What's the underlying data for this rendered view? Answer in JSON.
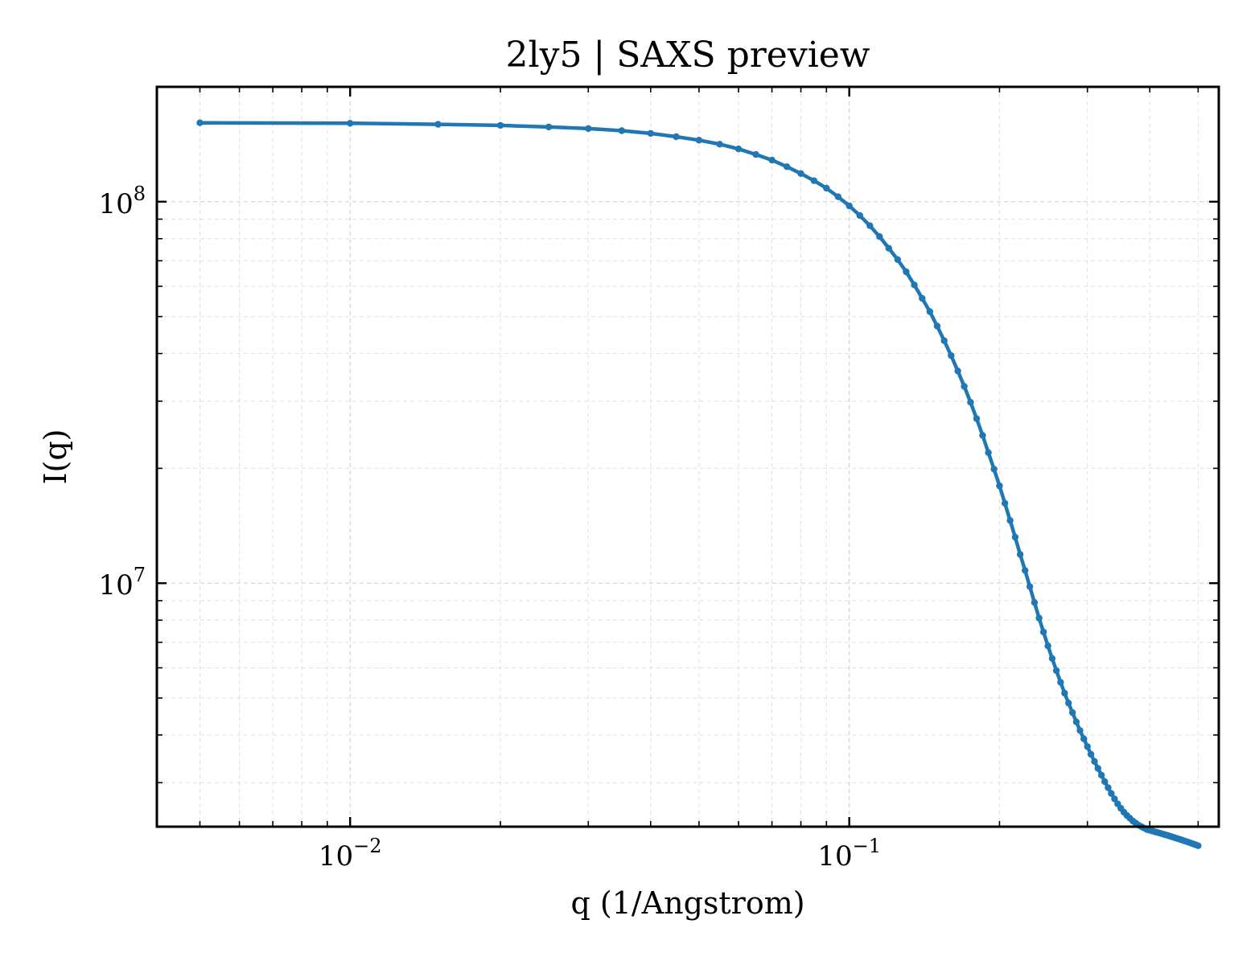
{
  "chart_data": {
    "type": "line",
    "title": "2ly5 | SAXS preview",
    "xlabel": "q (1/Angstrom)",
    "ylabel": "I(q)",
    "x_scale": "log",
    "y_scale": "log",
    "xlim": [
      0.0041,
      0.55
    ],
    "ylim": [
      2300000,
      200000000
    ],
    "grid": true,
    "legend": "none",
    "x_ticks": [
      {
        "value": 0.01,
        "base": "10",
        "exp": "−2"
      },
      {
        "value": 0.1,
        "base": "10",
        "exp": "−1"
      }
    ],
    "y_ticks": [
      {
        "value": 10000000,
        "base": "10",
        "exp": "7"
      },
      {
        "value": 100000000,
        "base": "10",
        "exp": "8"
      }
    ],
    "series": [
      {
        "color": "#1f77b4",
        "points": [
          [
            0.005,
            161000000
          ],
          [
            0.01,
            160500000
          ],
          [
            0.015,
            159500000
          ],
          [
            0.02,
            158500000
          ],
          [
            0.025,
            157000000
          ],
          [
            0.03,
            155500000
          ],
          [
            0.035,
            153500000
          ],
          [
            0.04,
            151000000
          ],
          [
            0.045,
            148000000
          ],
          [
            0.05,
            145000000
          ],
          [
            0.055,
            141500000
          ],
          [
            0.06,
            137500000
          ],
          [
            0.065,
            133000000
          ],
          [
            0.07,
            128500000
          ],
          [
            0.075,
            123500000
          ],
          [
            0.08,
            118500000
          ],
          [
            0.085,
            113500000
          ],
          [
            0.09,
            108500000
          ],
          [
            0.095,
            103000000
          ],
          [
            0.1,
            97500000
          ],
          [
            0.105,
            92000000
          ],
          [
            0.11,
            86500000
          ],
          [
            0.115,
            81000000
          ],
          [
            0.12,
            75500000
          ],
          [
            0.125,
            70500000
          ],
          [
            0.13,
            65500000
          ],
          [
            0.135,
            60500000
          ],
          [
            0.14,
            55800000
          ],
          [
            0.145,
            51500000
          ],
          [
            0.15,
            47200000
          ],
          [
            0.155,
            43200000
          ],
          [
            0.16,
            39500000
          ],
          [
            0.165,
            36000000
          ],
          [
            0.17,
            32800000
          ],
          [
            0.175,
            29800000
          ],
          [
            0.18,
            27000000
          ],
          [
            0.185,
            24400000
          ],
          [
            0.19,
            22000000
          ],
          [
            0.195,
            19900000
          ],
          [
            0.2,
            18000000
          ],
          [
            0.205,
            16200000
          ],
          [
            0.21,
            14600000
          ],
          [
            0.215,
            13200000
          ],
          [
            0.22,
            11900000
          ],
          [
            0.225,
            10800000
          ],
          [
            0.23,
            9800000
          ],
          [
            0.235,
            8900000
          ],
          [
            0.24,
            8100000
          ],
          [
            0.245,
            7450000
          ],
          [
            0.25,
            6850000
          ],
          [
            0.255,
            6350000
          ],
          [
            0.26,
            5900000
          ],
          [
            0.265,
            5500000
          ],
          [
            0.27,
            5150000
          ],
          [
            0.275,
            4850000
          ],
          [
            0.28,
            4580000
          ],
          [
            0.285,
            4330000
          ],
          [
            0.29,
            4110000
          ],
          [
            0.295,
            3910000
          ],
          [
            0.3,
            3730000
          ],
          [
            0.305,
            3560000
          ],
          [
            0.31,
            3410000
          ],
          [
            0.315,
            3270000
          ],
          [
            0.32,
            3140000
          ],
          [
            0.325,
            3020000
          ],
          [
            0.33,
            2910000
          ],
          [
            0.335,
            2810000
          ],
          [
            0.34,
            2720000
          ],
          [
            0.345,
            2640000
          ],
          [
            0.35,
            2570000
          ],
          [
            0.355,
            2510000
          ],
          [
            0.36,
            2460000
          ],
          [
            0.365,
            2420000
          ],
          [
            0.37,
            2380000
          ],
          [
            0.375,
            2350000
          ],
          [
            0.38,
            2320000
          ],
          [
            0.385,
            2300000
          ],
          [
            0.39,
            2280000
          ],
          [
            0.395,
            2260000
          ],
          [
            0.4,
            2250000
          ],
          [
            0.405,
            2240000
          ],
          [
            0.41,
            2230000
          ],
          [
            0.415,
            2220000
          ],
          [
            0.42,
            2210000
          ],
          [
            0.425,
            2200000
          ],
          [
            0.43,
            2190000
          ],
          [
            0.435,
            2180000
          ],
          [
            0.44,
            2170000
          ],
          [
            0.445,
            2160000
          ],
          [
            0.45,
            2150000
          ],
          [
            0.455,
            2140000
          ],
          [
            0.46,
            2130000
          ],
          [
            0.465,
            2120000
          ],
          [
            0.47,
            2110000
          ],
          [
            0.475,
            2100000
          ],
          [
            0.48,
            2090000
          ],
          [
            0.485,
            2080000
          ],
          [
            0.49,
            2070000
          ],
          [
            0.495,
            2060000
          ],
          [
            0.5,
            2050000
          ]
        ]
      }
    ]
  }
}
